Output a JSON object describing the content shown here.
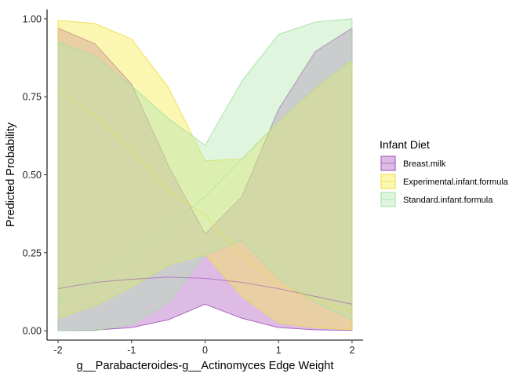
{
  "chart_data": {
    "type": "area",
    "title": "",
    "xlabel": "g__Parabacteroides-g__Actinomyces Edge Weight",
    "ylabel": "Predicted Probability",
    "xlim": [
      -2.15,
      2.15
    ],
    "ylim": [
      -0.03,
      1.03
    ],
    "xticks": [
      -2,
      -1,
      0,
      1,
      2
    ],
    "xtick_labels": [
      "-2",
      "-1",
      "0",
      "1",
      "2"
    ],
    "yticks": [
      0,
      0.25,
      0.5,
      0.75,
      1
    ],
    "ytick_labels": [
      "0.00",
      "0.25",
      "0.50",
      "0.75",
      "1.00"
    ],
    "grid": false,
    "legend": {
      "title": "Infant Diet",
      "position": "right"
    },
    "x": [
      -2,
      -1.5,
      -1,
      -0.5,
      0,
      0.5,
      1,
      1.5,
      2
    ],
    "series": [
      {
        "name": "Breast.milk",
        "fill": "#b05cc0",
        "line": "#9b4eb0",
        "fill_opacity": 0.42,
        "mean": [
          0.135,
          0.155,
          0.165,
          0.172,
          0.168,
          0.155,
          0.135,
          0.11,
          0.085
        ],
        "lower": [
          0.0,
          0.002,
          0.01,
          0.035,
          0.085,
          0.04,
          0.01,
          0.003,
          0.001
        ],
        "upper": [
          0.97,
          0.92,
          0.79,
          0.53,
          0.31,
          0.43,
          0.71,
          0.895,
          0.97
        ]
      },
      {
        "name": "Experimental.infant.formula",
        "fill": "#f7ea55",
        "line": "#ecdc3a",
        "fill_opacity": 0.45,
        "mean": [
          0.77,
          0.69,
          0.58,
          0.45,
          0.37,
          0.24,
          0.15,
          0.1,
          0.06
        ],
        "lower": [
          0.04,
          0.08,
          0.14,
          0.21,
          0.245,
          0.11,
          0.025,
          0.01,
          0.003
        ],
        "upper": [
          0.995,
          0.985,
          0.935,
          0.78,
          0.545,
          0.55,
          0.67,
          0.775,
          0.865
        ]
      },
      {
        "name": "Standard.infant.formula",
        "fill": "#aee6ad",
        "line": "#9fe09e",
        "fill_opacity": 0.4,
        "mean": [
          0.095,
          0.16,
          0.24,
          0.33,
          0.43,
          0.55,
          0.67,
          0.78,
          0.87
        ],
        "lower": [
          0.0,
          0.0,
          0.02,
          0.09,
          0.245,
          0.29,
          0.17,
          0.09,
          0.035
        ],
        "upper": [
          0.925,
          0.88,
          0.785,
          0.68,
          0.595,
          0.8,
          0.95,
          0.99,
          1.0
        ]
      }
    ]
  }
}
